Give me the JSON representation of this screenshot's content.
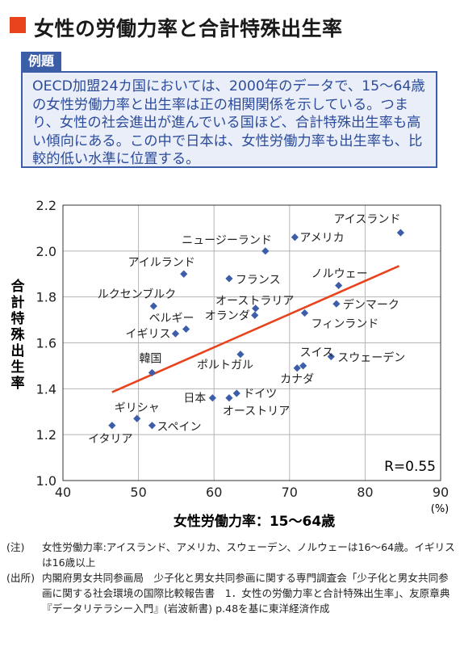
{
  "title": "女性の労働力率と合計特殊出生率",
  "example": {
    "tag": "例題",
    "text": "OECD加盟24カ国においては、2000年のデータで、15〜64歳の女性労働力率と出生率は正の相関関係を示している。つまり、女性の社会進出が進んでいる国ほど、合計特殊出生率も高い傾向にある。この中で日本は、女性労働力率も出生率も、比較的低い水準に位置する。"
  },
  "chart_data": {
    "type": "scatter",
    "xlabel": "女性労働力率：15〜64歳",
    "x_unit": "(%)",
    "ylabel": "合計特殊出生率",
    "xlim": [
      40,
      90
    ],
    "ylim": [
      1.0,
      2.2
    ],
    "x_ticks": [
      "40",
      "50",
      "60",
      "70",
      "80",
      "90"
    ],
    "y_ticks": [
      "1.0",
      "1.2",
      "1.4",
      "1.6",
      "1.8",
      "2.0",
      "2.2"
    ],
    "annotation": "R=0.55",
    "trendline": {
      "x1": 46.5,
      "y1": 1.385,
      "x2": 84.5,
      "y2": 1.935
    },
    "colors": {
      "point": "#3c5da8",
      "trend": "#e8431d"
    },
    "points": [
      {
        "label": "アイスランド",
        "x": 84.7,
        "y": 2.08
      },
      {
        "label": "アメリカ",
        "x": 70.7,
        "y": 2.06
      },
      {
        "label": "ニュージーランド",
        "x": 66.8,
        "y": 2.0
      },
      {
        "label": "アイルランド",
        "x": 56.0,
        "y": 1.9
      },
      {
        "label": "フランス",
        "x": 62.0,
        "y": 1.88
      },
      {
        "label": "ノルウェー",
        "x": 76.5,
        "y": 1.85
      },
      {
        "label": "オーストラリア",
        "x": 65.5,
        "y": 1.75
      },
      {
        "label": "オランダ",
        "x": 65.4,
        "y": 1.72
      },
      {
        "label": "ルクセンブルク",
        "x": 52.0,
        "y": 1.76
      },
      {
        "label": "デンマーク",
        "x": 76.2,
        "y": 1.77
      },
      {
        "label": "フィンランド",
        "x": 72.0,
        "y": 1.73
      },
      {
        "label": "ベルギー",
        "x": 56.3,
        "y": 1.66
      },
      {
        "label": "イギリス",
        "x": 54.9,
        "y": 1.64
      },
      {
        "label": "韓国",
        "x": 51.8,
        "y": 1.47
      },
      {
        "label": "ポルトガル",
        "x": 63.5,
        "y": 1.55
      },
      {
        "label": "スイス",
        "x": 71.8,
        "y": 1.5
      },
      {
        "label": "カナダ",
        "x": 71.0,
        "y": 1.49
      },
      {
        "label": "スウェーデン",
        "x": 75.5,
        "y": 1.54
      },
      {
        "label": "日本",
        "x": 59.8,
        "y": 1.36
      },
      {
        "label": "ドイツ",
        "x": 63.0,
        "y": 1.38
      },
      {
        "label": "オーストリア",
        "x": 62.0,
        "y": 1.36
      },
      {
        "label": "ギリシャ",
        "x": 49.8,
        "y": 1.27
      },
      {
        "label": "スペイン",
        "x": 51.8,
        "y": 1.24
      },
      {
        "label": "イタリア",
        "x": 46.5,
        "y": 1.24
      }
    ]
  },
  "notes": [
    {
      "label": "(注)",
      "text": "女性労働力率:アイスランド、アメリカ、スウェーデン、ノルウェーは16〜64歳。イギリスは16歳以上"
    },
    {
      "label": "(出所)",
      "text": "内閣府男女共同参画局　少子化と男女共同参画に関する専門調査会「少子化と男女共同参画に関する社会環境の国際比較報告書　1．女性の労働力率と合計特殊出生率」、友原章典『データリテラシー入門』(岩波新書) p.48を基に東洋経済作成"
    }
  ]
}
